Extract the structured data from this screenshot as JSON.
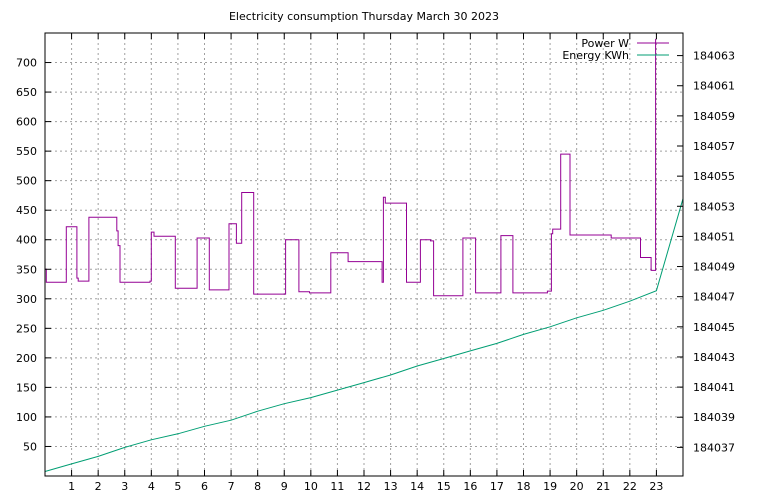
{
  "chart_data": {
    "type": "line",
    "title": "Electricity consumption Thursday March 30 2023",
    "xlabel": "",
    "ylabel": "",
    "y2label": "",
    "xlim": [
      0,
      24
    ],
    "ylim": [
      0,
      750
    ],
    "y2lim": [
      184035.1,
      184064.5
    ],
    "x_ticks": [
      1,
      2,
      3,
      4,
      5,
      6,
      7,
      8,
      9,
      10,
      11,
      12,
      13,
      14,
      15,
      16,
      17,
      18,
      19,
      20,
      21,
      22,
      23
    ],
    "y_ticks": [
      50,
      100,
      150,
      200,
      250,
      300,
      350,
      400,
      450,
      500,
      550,
      600,
      650,
      700
    ],
    "y2_ticks": [
      184037,
      184039,
      184041,
      184043,
      184045,
      184047,
      184049,
      184051,
      184053,
      184055,
      184057,
      184059,
      184061,
      184063
    ],
    "grid": true,
    "legend_position": "top-right",
    "series": [
      {
        "name": "Power W",
        "axis": "left",
        "color": "#940094",
        "step": true,
        "x": [
          0,
          0.05,
          0.12,
          0.8,
          0.83,
          1.2,
          1.25,
          1.65,
          1.73,
          2.7,
          2.75,
          2.82,
          3.95,
          4,
          4.1,
          4.85,
          4.9,
          5.65,
          5.72,
          6.1,
          6.18,
          6.85,
          6.92,
          7.2,
          7.4,
          7.8,
          7.85,
          8.95,
          9.05,
          9.5,
          9.55,
          9.95,
          10.0,
          10.75,
          11.4,
          12.65,
          12.68,
          12.73,
          12.8,
          13.55,
          13.6,
          14.05,
          14.12,
          14.5,
          14.62,
          15.65,
          15.72,
          16.1,
          16.2,
          17.1,
          17.15,
          17.5,
          17.6,
          18.55,
          18.9,
          19,
          19.05,
          19.1,
          19.4,
          19.72,
          19.75,
          21.2,
          21.3,
          22.4,
          22.45,
          22.8,
          22.95,
          22.97
        ],
        "values": [
          350,
          328,
          328,
          422,
          422,
          335,
          330,
          438,
          438,
          415,
          390,
          328,
          330,
          413,
          406,
          406,
          318,
          318,
          403,
          403,
          315,
          315,
          427,
          394,
          480,
          480,
          308,
          308,
          400,
          400,
          312,
          310,
          310,
          378,
          363,
          363,
          328,
          472,
          462,
          462,
          328,
          328,
          400,
          398,
          305,
          305,
          403,
          403,
          310,
          310,
          407,
          407,
          310,
          310,
          313,
          313,
          410,
          418,
          545,
          545,
          408,
          408,
          403,
          370,
          370,
          348,
          348,
          740
        ]
      },
      {
        "name": "Energy KWh",
        "axis": "right",
        "color": "#009e73",
        "step": false,
        "x": [
          0,
          1,
          2,
          3,
          4,
          5,
          6,
          7,
          8,
          9,
          10,
          11,
          12,
          13,
          14,
          15,
          16,
          17,
          18,
          19,
          20,
          21,
          22,
          23,
          24
        ],
        "values": [
          184035.4,
          184035.9,
          184036.4,
          184037,
          184037.5,
          184037.9,
          184038.4,
          184038.8,
          184039.4,
          184039.9,
          184040.3,
          184040.8,
          184041.3,
          184041.8,
          184042.4,
          184042.9,
          184043.4,
          184043.9,
          184044.5,
          184045.0,
          184045.6,
          184046.1,
          184046.7,
          184047.4,
          184053.5
        ]
      }
    ]
  }
}
